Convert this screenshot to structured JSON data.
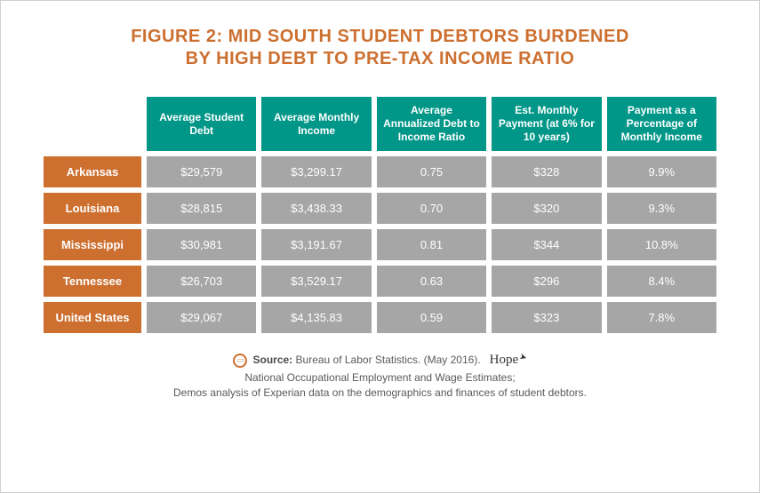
{
  "title_line1": "FIGURE 2: MID SOUTH STUDENT DEBTORS BURDENED",
  "title_line2": "BY HIGH DEBT TO PRE-TAX INCOME RATIO",
  "colors": {
    "accent_orange": "#cc6f2f",
    "header_teal": "#009688",
    "cell_gray": "#a6a6a6",
    "text_gray": "#5a5a5a",
    "background": "#ffffff"
  },
  "table": {
    "columns": [
      "Average Student Debt",
      "Average Monthly Income",
      "Average Annualized Debt to Income Ratio",
      "Est. Monthly Payment (at 6% for 10 years)",
      "Payment as a Percentage of Monthly Income"
    ],
    "rows": [
      {
        "label": "Arkansas",
        "cells": [
          "$29,579",
          "$3,299.17",
          "0.75",
          "$328",
          "9.9%"
        ]
      },
      {
        "label": "Louisiana",
        "cells": [
          "$28,815",
          "$3,438.33",
          "0.70",
          "$320",
          "9.3%"
        ]
      },
      {
        "label": "Mississippi",
        "cells": [
          "$30,981",
          "$3,191.67",
          "0.81",
          "$344",
          "10.8%"
        ]
      },
      {
        "label": "Tennessee",
        "cells": [
          "$26,703",
          "$3,529.17",
          "0.63",
          "$296",
          "8.4%"
        ]
      },
      {
        "label": "United States",
        "cells": [
          "$29,067",
          "$4,135.83",
          "0.59",
          "$323",
          "7.8%"
        ]
      }
    ]
  },
  "footer": {
    "source_label": "Source:",
    "source_text": "Bureau of Labor Statistics. (May 2016).",
    "line2": "National Occupational Employment and Wage Estimates;",
    "line3": "Demos analysis of Experian data on the demographics and finances of student debtors.",
    "logo_text": "Hope"
  }
}
